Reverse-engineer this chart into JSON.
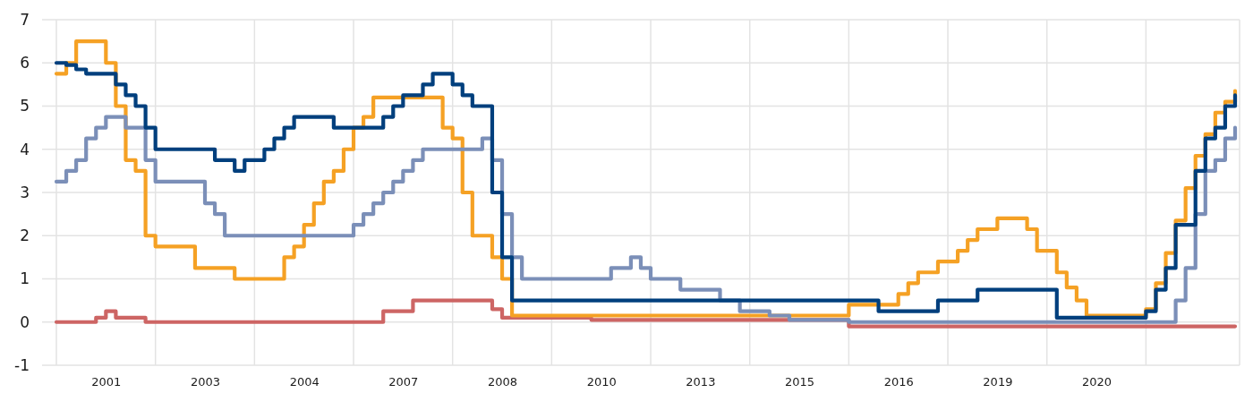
{
  "chart_data": {
    "type": "step",
    "ylim": [
      -1,
      7
    ],
    "yticks": [
      -1,
      0,
      1,
      2,
      3,
      4,
      5,
      6,
      7
    ],
    "grid": true,
    "categories": [
      null,
      null,
      null,
      null,
      null,
      "2001",
      null,
      null,
      null,
      null,
      null,
      null,
      null,
      null,
      null,
      "2003",
      null,
      null,
      null,
      null,
      null,
      null,
      null,
      null,
      null,
      "2004",
      null,
      null,
      null,
      null,
      null,
      null,
      null,
      null,
      null,
      "2007",
      null,
      null,
      null,
      null,
      null,
      null,
      null,
      null,
      null,
      "2008",
      null,
      null,
      null,
      null,
      null,
      null,
      null,
      null,
      null,
      "2010",
      null,
      null,
      null,
      null,
      null,
      null,
      null,
      null,
      null,
      "2013",
      null,
      null,
      null,
      null,
      null,
      null,
      null,
      null,
      null,
      "2015",
      null,
      null,
      null,
      null,
      null,
      null,
      null,
      null,
      null,
      "2016",
      null,
      null,
      null,
      null,
      null,
      null,
      null,
      null,
      null,
      "2019",
      null,
      null,
      null,
      null,
      null,
      null,
      null,
      null,
      null,
      "2020",
      null,
      null,
      null,
      null,
      null,
      null,
      null,
      null,
      null,
      null,
      null,
      null,
      null,
      null
    ],
    "series": [
      {
        "color": "#cd6564",
        "values": [
          0,
          0,
          0,
          0,
          0.1,
          0.25,
          0.1,
          0.1,
          0.1,
          0,
          0,
          0,
          0,
          0,
          0,
          0,
          0,
          0,
          0,
          0,
          0,
          0,
          0,
          0,
          0,
          0,
          0,
          0,
          0,
          0,
          0,
          0,
          0,
          0.25,
          0.25,
          0.25,
          0.5,
          0.5,
          0.5,
          0.5,
          0.5,
          0.5,
          0.5,
          0.5,
          0.3,
          0.1,
          0.1,
          0.1,
          0.1,
          0.1,
          0.1,
          0.1,
          0.1,
          0.1,
          0.05,
          0.05,
          0.05,
          0.05,
          0.05,
          0.05,
          0.05,
          0.05,
          0.05,
          0.05,
          0.05,
          0.05,
          0.05,
          0.05,
          0.05,
          0.05,
          0.05,
          0.05,
          0.05,
          0.05,
          0.05,
          0.05,
          0.05,
          0.05,
          0.05,
          0.05,
          -0.1,
          -0.1,
          -0.1,
          -0.1,
          -0.1,
          -0.1,
          -0.1,
          -0.1,
          -0.1,
          -0.1,
          -0.1,
          -0.1,
          -0.1,
          -0.1,
          -0.1,
          -0.1,
          -0.1,
          -0.1,
          -0.1,
          -0.1,
          -0.1,
          -0.1,
          -0.1,
          -0.1,
          -0.1,
          -0.1,
          -0.1,
          -0.1,
          -0.1,
          -0.1,
          -0.1,
          -0.1,
          -0.1,
          -0.1,
          -0.1,
          -0.1,
          -0.1,
          -0.1,
          -0.1,
          -0.1
        ]
      },
      {
        "color": "#f5a124",
        "values": [
          5.75,
          6,
          6.5,
          6.5,
          6.5,
          6,
          5,
          3.75,
          3.5,
          2,
          1.75,
          1.75,
          1.75,
          1.75,
          1.25,
          1.25,
          1.25,
          1.25,
          1,
          1,
          1,
          1,
          1,
          1.5,
          1.75,
          2.25,
          2.75,
          3.25,
          3.5,
          4,
          4.5,
          4.75,
          5.2,
          5.2,
          5.2,
          5.2,
          5.2,
          5.2,
          5.2,
          4.5,
          4.25,
          3,
          2,
          2,
          1.5,
          1,
          0.15,
          0.15,
          0.15,
          0.15,
          0.15,
          0.15,
          0.15,
          0.15,
          0.15,
          0.15,
          0.15,
          0.15,
          0.15,
          0.15,
          0.15,
          0.15,
          0.15,
          0.15,
          0.15,
          0.15,
          0.15,
          0.15,
          0.15,
          0.15,
          0.15,
          0.15,
          0.15,
          0.15,
          0.15,
          0.15,
          0.15,
          0.15,
          0.15,
          0.15,
          0.4,
          0.4,
          0.4,
          0.4,
          0.4,
          0.65,
          0.9,
          1.15,
          1.15,
          1.4,
          1.4,
          1.65,
          1.9,
          2.15,
          2.15,
          2.4,
          2.4,
          2.4,
          2.15,
          1.65,
          1.65,
          1.15,
          0.8,
          0.5,
          0.15,
          0.15,
          0.15,
          0.15,
          0.15,
          0.15,
          0.3,
          0.9,
          1.6,
          2.35,
          3.1,
          3.85,
          4.35,
          4.85,
          5.1,
          5.35
        ]
      },
      {
        "color": "#7b8fb8",
        "values": [
          3.25,
          3.5,
          3.75,
          4.25,
          4.5,
          4.75,
          4.75,
          4.5,
          4.5,
          3.75,
          3.25,
          3.25,
          3.25,
          3.25,
          3.25,
          2.75,
          2.5,
          2,
          2,
          2,
          2,
          2,
          2,
          2,
          2,
          2,
          2,
          2,
          2,
          2,
          2.25,
          2.5,
          2.75,
          3,
          3.25,
          3.5,
          3.75,
          4,
          4,
          4,
          4,
          4,
          4,
          4.25,
          3.75,
          2.5,
          1.5,
          1,
          1,
          1,
          1,
          1,
          1,
          1,
          1,
          1,
          1.25,
          1.25,
          1.5,
          1.25,
          1,
          1,
          1,
          0.75,
          0.75,
          0.75,
          0.75,
          0.5,
          0.5,
          0.25,
          0.25,
          0.25,
          0.15,
          0.15,
          0.05,
          0.05,
          0.05,
          0.05,
          0.05,
          0.05,
          0,
          0,
          0,
          0,
          0,
          0,
          0,
          0,
          0,
          0,
          0,
          0,
          0,
          0,
          0,
          0,
          0,
          0,
          0,
          0,
          0,
          0,
          0,
          0,
          0,
          0,
          0,
          0,
          0,
          0,
          0,
          0,
          0,
          0.5,
          1.25,
          2.5,
          3.5,
          3.75,
          4.25,
          4.5
        ]
      },
      {
        "color": "#003f7d",
        "values": [
          6,
          5.95,
          5.85,
          5.75,
          5.75,
          5.75,
          5.5,
          5.25,
          5,
          4.5,
          4,
          4,
          4,
          4,
          4,
          4,
          3.75,
          3.75,
          3.5,
          3.75,
          3.75,
          4,
          4.25,
          4.5,
          4.75,
          4.75,
          4.75,
          4.75,
          4.5,
          4.5,
          4.5,
          4.5,
          4.5,
          4.75,
          5,
          5.25,
          5.25,
          5.5,
          5.75,
          5.75,
          5.5,
          5.25,
          5,
          5,
          3,
          1.5,
          0.5,
          0.5,
          0.5,
          0.5,
          0.5,
          0.5,
          0.5,
          0.5,
          0.5,
          0.5,
          0.5,
          0.5,
          0.5,
          0.5,
          0.5,
          0.5,
          0.5,
          0.5,
          0.5,
          0.5,
          0.5,
          0.5,
          0.5,
          0.5,
          0.5,
          0.5,
          0.5,
          0.5,
          0.5,
          0.5,
          0.5,
          0.5,
          0.5,
          0.5,
          0.5,
          0.5,
          0.5,
          0.25,
          0.25,
          0.25,
          0.25,
          0.25,
          0.25,
          0.5,
          0.5,
          0.5,
          0.5,
          0.75,
          0.75,
          0.75,
          0.75,
          0.75,
          0.75,
          0.75,
          0.75,
          0.1,
          0.1,
          0.1,
          0.1,
          0.1,
          0.1,
          0.1,
          0.1,
          0.1,
          0.25,
          0.75,
          1.25,
          2.25,
          2.25,
          3.5,
          4.25,
          4.5,
          5,
          5.25
        ]
      }
    ]
  }
}
